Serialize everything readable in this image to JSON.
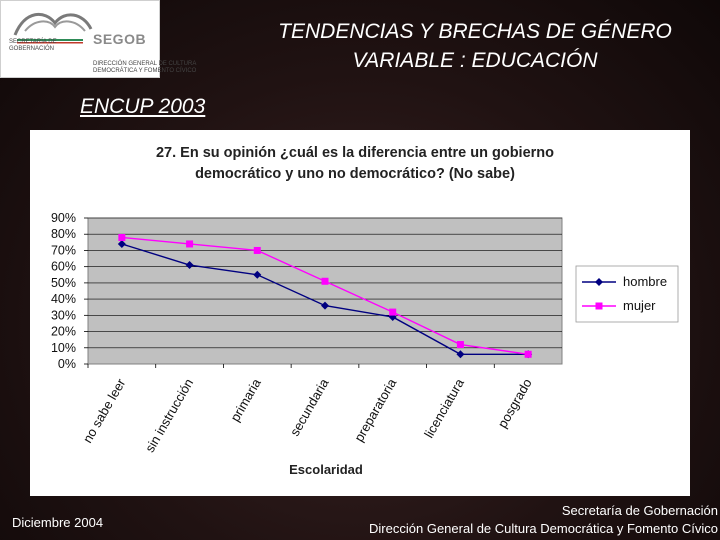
{
  "header": {
    "logo_text_1": "SECRETARÍA DE\nGOBERNACIÓN",
    "logo_segob": "SEGOB",
    "logo_text_2": "DIRECCIÓN GENERAL DE CULTURA\nDEMOCRÁTICA Y FOMENTO CÍVICO",
    "title_line1": "TENDENCIAS Y BRECHAS DE GÉNERO",
    "title_line2": "VARIABLE : EDUCACIÓN",
    "survey": "ENCUP 2003"
  },
  "chart_data": {
    "type": "line",
    "title_line1": "27. En su opinión ¿cuál es la diferencia entre un gobierno",
    "title_line2": "democrático y uno no democrático? (No sabe)",
    "xlabel": "Escolaridad",
    "ylabel": "",
    "categories": [
      "no sabe leer",
      "sin instrucción",
      "primaria",
      "secundaria",
      "preparatoria",
      "licenciatura",
      "posgrado"
    ],
    "yticks": [
      "0%",
      "10%",
      "20%",
      "30%",
      "40%",
      "50%",
      "60%",
      "70%",
      "80%",
      "90%"
    ],
    "ylim": [
      0,
      90
    ],
    "grid": true,
    "legend_position": "right",
    "series": [
      {
        "name": "hombre",
        "color": "#000080",
        "marker": "diamond",
        "values": [
          74,
          61,
          55,
          36,
          29,
          6,
          6
        ]
      },
      {
        "name": "mujer",
        "color": "#ff00ff",
        "marker": "square",
        "values": [
          78,
          74,
          70,
          51,
          32,
          12,
          6
        ]
      }
    ]
  },
  "footer": {
    "date": "Diciembre  2004",
    "org_line1": "Secretaría de Gobernación",
    "org_line2": "Dirección General de Cultura Democrática y Fomento Cívico"
  }
}
